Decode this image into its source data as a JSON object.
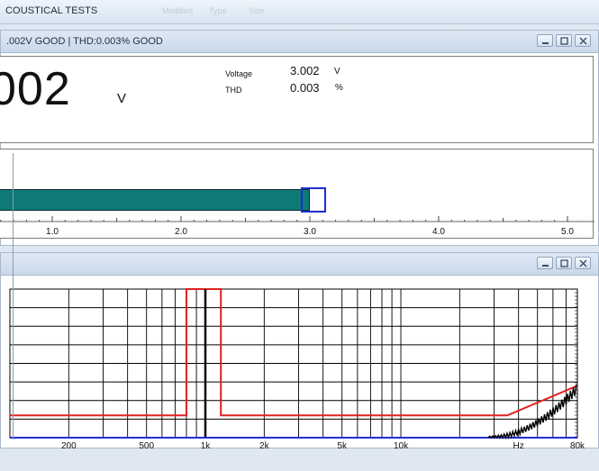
{
  "app": {
    "title": "COUSTICAL TESTS",
    "ghost_cols": [
      "Modified",
      "Type",
      "Size"
    ]
  },
  "reading_window": {
    "title": ".002V GOOD  |  THD:0.003% GOOD",
    "big_value": "002",
    "big_unit": "V",
    "voltage_label": "Voltage",
    "voltage_value": "3.002",
    "voltage_unit": "V",
    "thd_label": "THD",
    "thd_value": "0.003",
    "thd_unit": "%"
  },
  "meter": {
    "value": 3.002,
    "peak": 3.04,
    "range": [
      0,
      5.0
    ],
    "tick_labels": [
      "1.0",
      "2.0",
      "3.0",
      "4.0",
      "5.0"
    ],
    "bar_color": "#0f7a78",
    "peak_color": "#1a2fd0"
  },
  "spectrum_window": {
    "x_labels": [
      "200",
      "500",
      "1k",
      "2k",
      "5k",
      "10k",
      "Hz",
      "80k"
    ],
    "colors": {
      "limit": "#e02020",
      "signal": "#000000",
      "baseline": "#1f2fd6"
    }
  },
  "chart_data": {
    "type": "line",
    "x_scale": "log",
    "x_tick_labels": [
      "200",
      "500",
      "1k",
      "2k",
      "5k",
      "10k",
      "80k"
    ],
    "x_unit": "Hz",
    "series": [
      {
        "points": [
          [
            100,
            0.15
          ],
          [
            800,
            0.15
          ],
          [
            800,
            1.0
          ],
          [
            1200,
            1.0
          ],
          [
            1200,
            0.15
          ],
          [
            35000,
            0.15
          ],
          [
            80000,
            0.35
          ]
        ]
      },
      {
        "points": [
          [
            1000,
            1.0
          ],
          [
            1000,
            0.0
          ]
        ]
      },
      {
        "points": [
          [
            100,
            0.0
          ],
          [
            80000,
            0.0
          ]
        ]
      }
    ]
  }
}
